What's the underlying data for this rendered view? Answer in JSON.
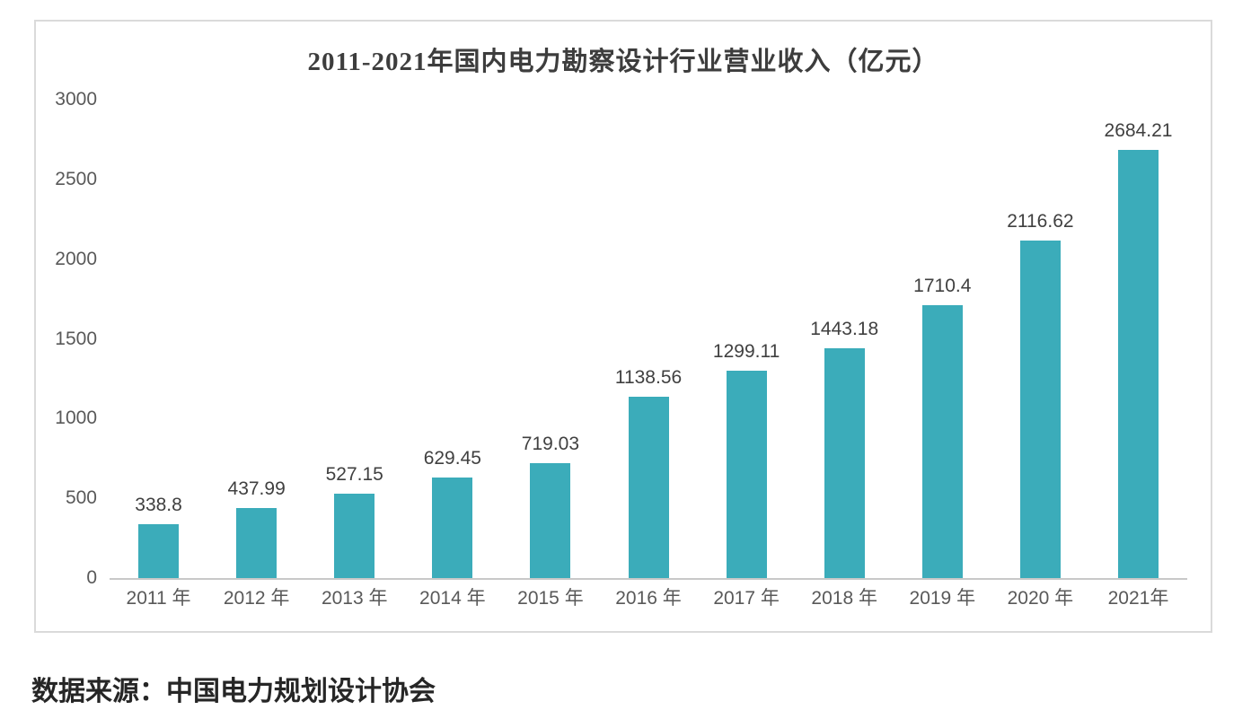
{
  "chart_data": {
    "type": "bar",
    "title": "2011-2021年国内电力勘察设计行业营业收入（亿元）",
    "categories": [
      "2011 年",
      "2012 年",
      "2013 年",
      "2014 年",
      "2015 年",
      "2016 年",
      "2017 年",
      "2018 年",
      "2019 年",
      "2020 年",
      "2021年"
    ],
    "values": [
      338.8,
      437.99,
      527.15,
      629.45,
      719.03,
      1138.56,
      1299.11,
      1443.18,
      1710.4,
      2116.62,
      2684.21
    ],
    "value_labels": [
      "338.8",
      "437.99",
      "527.15",
      "629.45",
      "719.03",
      "1138.56",
      "1299.11",
      "1443.18",
      "1710.4",
      "2116.62",
      "2684.21"
    ],
    "yticks": [
      0,
      500,
      1000,
      1500,
      2000,
      2500,
      3000
    ],
    "ylim": [
      0,
      3000
    ],
    "xlabel": "",
    "ylabel": "",
    "grid": false,
    "legend": false
  },
  "source_text": "数据来源：中国电力规划设计协会",
  "colors": {
    "bar": "#3bacba",
    "title": "#3d3d3d",
    "tick_label": "#595959",
    "value_label": "#404040",
    "axis_line": "#c8c8c8",
    "box_border": "#dadada",
    "background": "#ffffff"
  }
}
